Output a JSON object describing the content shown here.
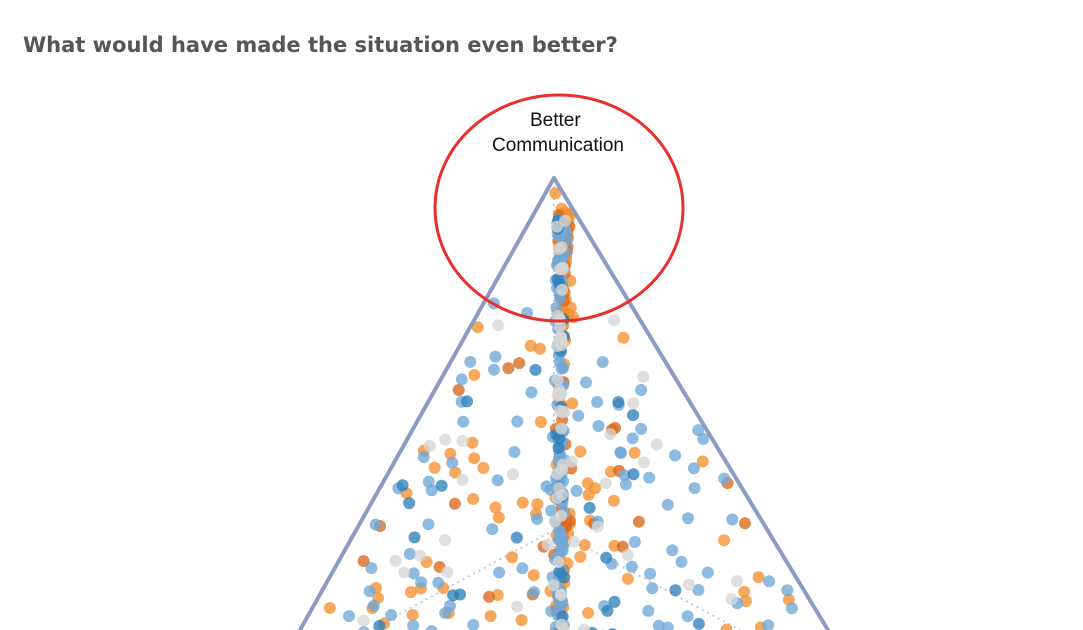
{
  "page": {
    "question": "What would have made the situation even better?"
  },
  "chart_data": {
    "type": "scatter",
    "subtype": "ternary",
    "title": "",
    "vertex_labels": {
      "top": [
        "Better",
        "Communication"
      ]
    },
    "highlight": {
      "shape": "circle",
      "color": "#e8312f",
      "target": "top vertex"
    },
    "colors": {
      "frame": "#8c9bc4",
      "inner_axes": "#c4c8dc",
      "orange": "#f39130",
      "dark_orange": "#d8691e",
      "blue": "#6fa8d8",
      "dark_blue": "#2f7fb8",
      "gray": "#d6d6d6"
    },
    "point_groups": [
      {
        "color": "orange",
        "count": 150
      },
      {
        "color": "dark_orange",
        "count": 55
      },
      {
        "color": "blue",
        "count": 190
      },
      {
        "color": "dark_blue",
        "count": 40
      },
      {
        "color": "gray",
        "count": 75
      }
    ]
  }
}
